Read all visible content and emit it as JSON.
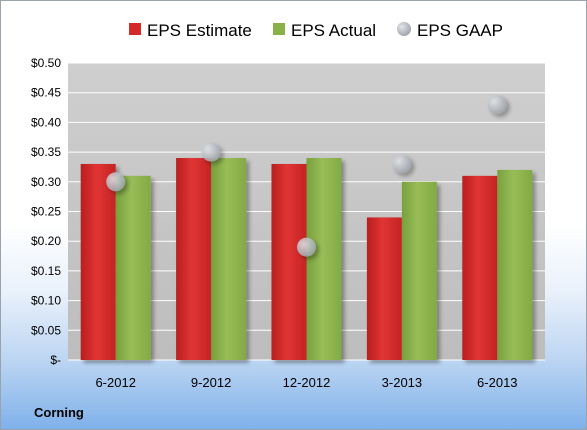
{
  "company": "Corning",
  "colors": {
    "estimate": "#d42a2a",
    "actual": "#8ab04a",
    "gaap": "#b3b8bf",
    "plot_bg": "#c8c8c8",
    "grid": "#ffffff"
  },
  "chart_data": {
    "type": "bar",
    "categories": [
      "6-2012",
      "9-2012",
      "12-2012",
      "3-2013",
      "6-2013"
    ],
    "series": [
      {
        "name": "EPS Estimate",
        "type": "bar",
        "values": [
          0.33,
          0.34,
          0.33,
          0.24,
          0.31
        ]
      },
      {
        "name": "EPS Actual",
        "type": "bar",
        "values": [
          0.31,
          0.34,
          0.34,
          0.3,
          0.32
        ]
      },
      {
        "name": "EPS GAAP",
        "type": "scatter",
        "values": [
          0.3,
          0.35,
          0.19,
          0.33,
          0.43
        ]
      }
    ],
    "yticks": [
      "$-",
      "$0.05",
      "$0.10",
      "$0.15",
      "$0.20",
      "$0.25",
      "$0.30",
      "$0.35",
      "$0.40",
      "$0.45",
      "$0.50"
    ],
    "ylim": [
      0,
      0.5
    ],
    "grid": true,
    "legend_position": "top"
  }
}
